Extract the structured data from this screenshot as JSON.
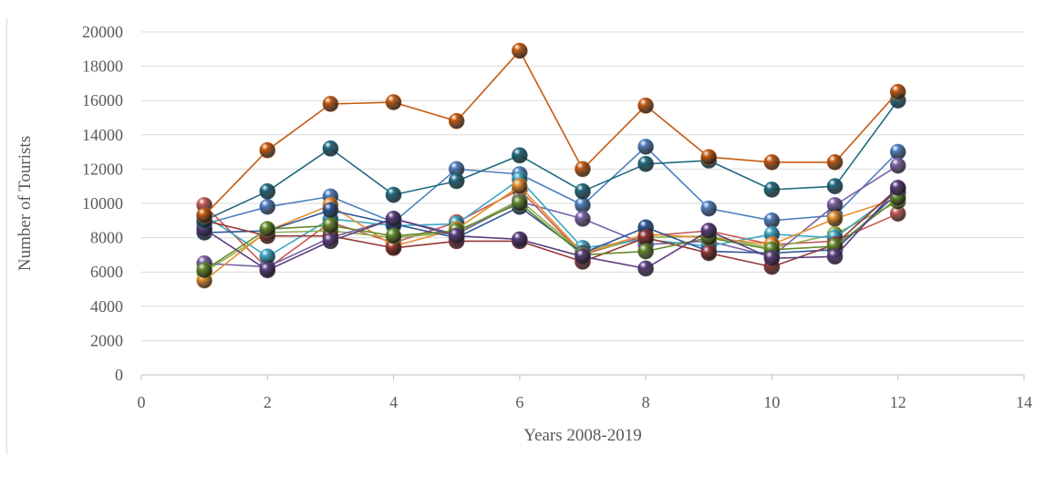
{
  "chart_data": {
    "type": "line",
    "xlabel": "Years 2008-2019",
    "ylabel": "Number of Tourists",
    "xlim": [
      0,
      14
    ],
    "ylim": [
      0,
      20000
    ],
    "x_ticks": [
      0,
      2,
      4,
      6,
      8,
      10,
      12,
      14
    ],
    "y_ticks": [
      0,
      2000,
      4000,
      6000,
      8000,
      10000,
      12000,
      14000,
      16000,
      18000,
      20000
    ],
    "grid": "horizontal",
    "legend": "none",
    "x": [
      1,
      2,
      3,
      4,
      5,
      6,
      7,
      8,
      9,
      10,
      11,
      12
    ],
    "series": [
      {
        "color": "#4e7fbf",
        "values": [
          8800,
          9800,
          10400,
          8900,
          12000,
          11700,
          9900,
          13300,
          9700,
          9000,
          9300,
          13000
        ]
      },
      {
        "color": "#c65a56",
        "values": [
          9900,
          6200,
          8900,
          7700,
          8900,
          10800,
          7000,
          8100,
          8400,
          7600,
          7800,
          9400
        ]
      },
      {
        "color": "#8fb04f",
        "values": [
          6000,
          8300,
          8400,
          8000,
          8300,
          10200,
          7100,
          8000,
          8100,
          7400,
          8200,
          10100
        ]
      },
      {
        "color": "#7a62a6",
        "values": [
          6500,
          6300,
          8000,
          9100,
          8200,
          10100,
          9100,
          7600,
          7800,
          6900,
          9900,
          12200
        ]
      },
      {
        "color": "#3ea7c3",
        "values": [
          9300,
          6900,
          9100,
          8700,
          8800,
          11400,
          7400,
          7900,
          7500,
          8200,
          8000,
          10700
        ]
      },
      {
        "color": "#e98f2f",
        "values": [
          5500,
          8400,
          9900,
          7500,
          8500,
          11000,
          7100,
          8200,
          8000,
          7600,
          9100,
          10300
        ]
      },
      {
        "color": "#2e5597",
        "values": [
          8300,
          8400,
          9600,
          8800,
          8000,
          9800,
          7100,
          8600,
          7200,
          7100,
          7300,
          10600
        ]
      },
      {
        "color": "#933734",
        "values": [
          9000,
          8100,
          8100,
          7400,
          7800,
          7800,
          6600,
          8000,
          7100,
          6300,
          7600,
          10900
        ]
      },
      {
        "color": "#658a2d",
        "values": [
          6100,
          8500,
          8700,
          8100,
          8400,
          10000,
          7000,
          7200,
          8000,
          7300,
          7500,
          10300
        ]
      },
      {
        "color": "#5a3e7c",
        "values": [
          8500,
          6100,
          7800,
          9100,
          8100,
          7900,
          6900,
          6200,
          8400,
          6800,
          6900,
          10900
        ]
      },
      {
        "color": "#1f6b7f",
        "values": [
          9000,
          10700,
          13200,
          10500,
          11300,
          12800,
          10700,
          12300,
          12500,
          10800,
          11000,
          16000
        ]
      },
      {
        "color": "#c55a11",
        "values": [
          9300,
          13100,
          15800,
          15900,
          14800,
          18900,
          12000,
          15700,
          12700,
          12400,
          12400,
          16500
        ]
      }
    ]
  }
}
